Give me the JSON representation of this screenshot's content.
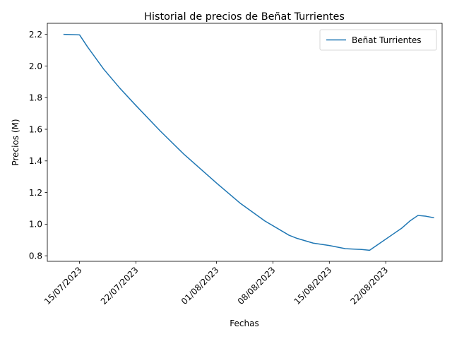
{
  "chart_data": {
    "type": "line",
    "title": "Historial de precios de Beñat Turrientes",
    "xlabel": "Fechas",
    "ylabel": "Precios (M)",
    "legend_position": "top-right",
    "grid": false,
    "xlim": [
      "2023-07-11",
      "2023-08-29"
    ],
    "ylim": [
      0.765,
      2.27
    ],
    "x_ticks": [
      "2023-07-15",
      "2023-07-22",
      "2023-08-01",
      "2023-08-08",
      "2023-08-15",
      "2023-08-22"
    ],
    "x_tick_labels": [
      "15/07/2023",
      "22/07/2023",
      "01/08/2023",
      "08/08/2023",
      "15/08/2023",
      "22/08/2023"
    ],
    "y_ticks": [
      0.8,
      1.0,
      1.2,
      1.4,
      1.6,
      1.8,
      2.0,
      2.2
    ],
    "y_tick_labels": [
      "0.8",
      "1.0",
      "1.2",
      "1.4",
      "1.6",
      "1.8",
      "2.0",
      "2.2"
    ],
    "series": [
      {
        "name": "Beñat Turrientes",
        "color": "#1f77b4",
        "x": [
          "2023-07-13",
          "2023-07-15",
          "2023-07-16",
          "2023-07-18",
          "2023-07-20",
          "2023-07-22",
          "2023-07-25",
          "2023-07-28",
          "2023-08-01",
          "2023-08-04",
          "2023-08-07",
          "2023-08-10",
          "2023-08-11",
          "2023-08-13",
          "2023-08-15",
          "2023-08-17",
          "2023-08-19",
          "2023-08-20",
          "2023-08-21",
          "2023-08-23",
          "2023-08-24",
          "2023-08-25",
          "2023-08-26",
          "2023-08-27",
          "2023-08-28"
        ],
        "y": [
          2.2,
          2.197,
          2.12,
          1.98,
          1.86,
          1.75,
          1.59,
          1.44,
          1.26,
          1.13,
          1.02,
          0.93,
          0.91,
          0.88,
          0.865,
          0.845,
          0.84,
          0.835,
          0.87,
          0.94,
          0.975,
          1.02,
          1.055,
          1.05,
          1.04
        ]
      }
    ]
  }
}
